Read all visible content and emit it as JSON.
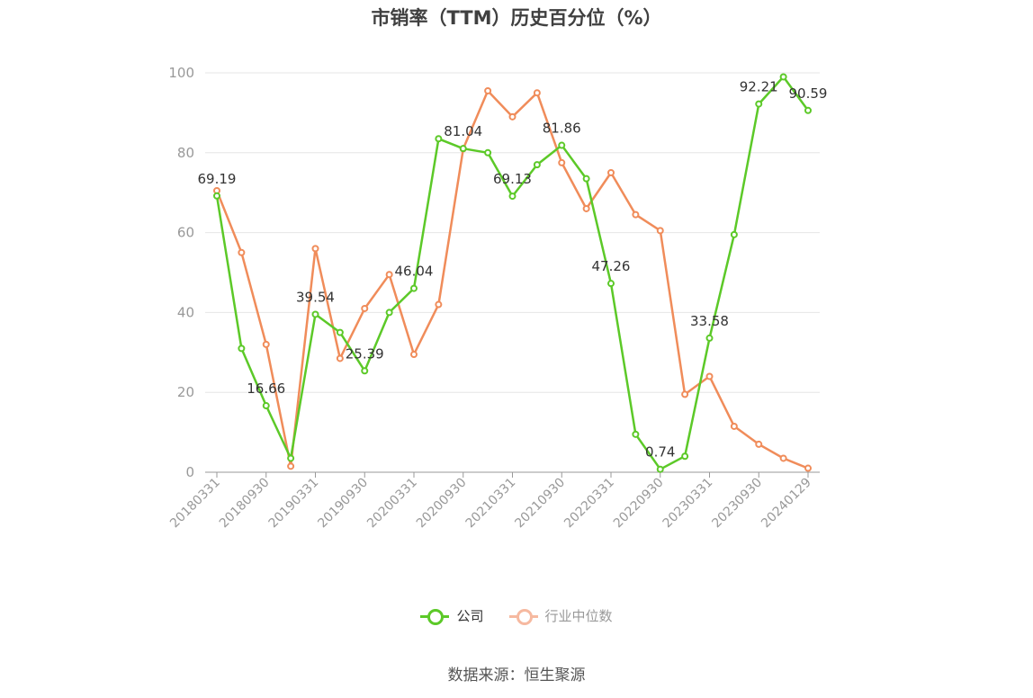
{
  "title": "市销率（TTM）历史百分位（%）",
  "source": "数据来源：恒生聚源",
  "colors": {
    "company": "#5cc928",
    "industry": "#f08c5a",
    "industry_legend": "#f6b9a0",
    "axis_text": "#999999",
    "grid": "#e6e6e6"
  },
  "chart_data": {
    "type": "line",
    "title": "市销率（TTM）历史百分位（%）",
    "ylim": [
      0,
      100
    ],
    "yticks": [
      0,
      20,
      40,
      60,
      80,
      100
    ],
    "grid": true,
    "legend_position": "bottom",
    "xtick_labels": [
      "20180331",
      "20180930",
      "20190331",
      "20190930",
      "20200331",
      "20200930",
      "20210331",
      "20210930",
      "20220331",
      "20220930",
      "20230331",
      "20230930",
      "20240129"
    ],
    "x": [
      "20180331",
      "20180630",
      "20180930",
      "20181231",
      "20190331",
      "20190630",
      "20190930",
      "20191231",
      "20200331",
      "20200630",
      "20200930",
      "20201231",
      "20210331",
      "20210630",
      "20210930",
      "20211231",
      "20220331",
      "20220630",
      "20220930",
      "20221231",
      "20230331",
      "20230630",
      "20230930",
      "20231231",
      "20240129"
    ],
    "series": [
      {
        "name": "公司",
        "color": "#5cc928",
        "values": [
          69.19,
          31,
          16.66,
          3.5,
          39.54,
          35,
          25.39,
          40,
          46.04,
          83.5,
          81.04,
          80,
          69.13,
          77,
          81.86,
          73.5,
          47.26,
          9.5,
          0.74,
          4,
          33.58,
          59.5,
          92.21,
          99,
          90.59
        ]
      },
      {
        "name": "行业中位数",
        "color": "#f08c5a",
        "values": [
          70.5,
          55,
          32,
          1.5,
          56,
          28.5,
          41,
          49.5,
          29.5,
          42,
          81,
          95.5,
          89,
          95,
          77.5,
          66,
          75,
          64.5,
          60.5,
          19.5,
          24,
          11.5,
          7,
          3.5,
          1
        ]
      }
    ],
    "data_labels": [
      {
        "series": 0,
        "index": 0,
        "text": "69.19"
      },
      {
        "series": 0,
        "index": 2,
        "text": "16.66"
      },
      {
        "series": 0,
        "index": 4,
        "text": "39.54"
      },
      {
        "series": 0,
        "index": 6,
        "text": "25.39"
      },
      {
        "series": 0,
        "index": 8,
        "text": "46.04"
      },
      {
        "series": 0,
        "index": 10,
        "text": "81.04"
      },
      {
        "series": 0,
        "index": 12,
        "text": "69.13"
      },
      {
        "series": 0,
        "index": 14,
        "text": "81.86"
      },
      {
        "series": 0,
        "index": 16,
        "text": "47.26"
      },
      {
        "series": 0,
        "index": 18,
        "text": "0.74"
      },
      {
        "series": 0,
        "index": 20,
        "text": "33.58"
      },
      {
        "series": 0,
        "index": 22,
        "text": "92.21"
      },
      {
        "series": 0,
        "index": 24,
        "text": "90.59"
      }
    ]
  }
}
